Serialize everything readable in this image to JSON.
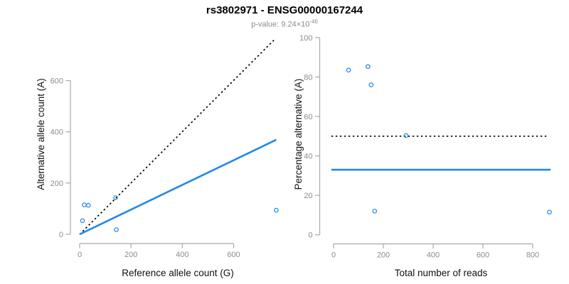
{
  "header": {
    "title": "rs3802971 - ENSG00000167244",
    "pvalue_prefix": "p-value: 9.24×10",
    "pvalue_exponent": "-46"
  },
  "colors": {
    "accent_blue": "#2287E8",
    "identity_black": "#000000",
    "axis_line": "#A9A9A9",
    "tick_label": "#8C8C8C",
    "axis_title": "#111111",
    "subtitle_gray": "#8C8C8C"
  },
  "chart_data": [
    {
      "id": "allele-count-scatter",
      "type": "scatter",
      "title": "",
      "xlabel": "Reference allele count (G)",
      "ylabel": "Alternative allele count (A)",
      "xlim": [
        0,
        600
      ],
      "ylim": [
        0,
        600
      ],
      "xticks": [
        0,
        200,
        400,
        600
      ],
      "yticks": [
        0,
        200,
        400,
        600
      ],
      "grid": false,
      "points": [
        [
          18,
          115
        ],
        [
          34,
          113
        ],
        [
          11,
          53
        ],
        [
          140,
          143
        ],
        [
          143,
          18
        ],
        [
          766,
          94
        ]
      ],
      "lines": [
        {
          "name": "identity-line",
          "style": "dotted",
          "color": "#000000",
          "from": [
            0,
            0
          ],
          "to": [
            760,
            761
          ]
        },
        {
          "name": "regression-line",
          "style": "solid",
          "color": "#2287E8",
          "from": [
            0,
            0
          ],
          "to": [
            766,
            369
          ]
        }
      ]
    },
    {
      "id": "percentage-alternative-scatter",
      "type": "scatter",
      "title": "",
      "xlabel": "Total number of reads",
      "ylabel": "Percentage alternative (A)",
      "xlim": [
        0,
        800
      ],
      "ylim": [
        0,
        100
      ],
      "xticks": [
        0,
        200,
        400,
        600,
        800
      ],
      "yticks": [
        0,
        20,
        40,
        60,
        80,
        100
      ],
      "grid": false,
      "points": [
        [
          60,
          83.5
        ],
        [
          138,
          85.3
        ],
        [
          151,
          76
        ],
        [
          291,
          50.3
        ],
        [
          165,
          12
        ],
        [
          867,
          11.5
        ]
      ],
      "lines": [
        {
          "name": "fifty-percent-line",
          "style": "dotted",
          "color": "#000000",
          "from": [
            -9,
            50
          ],
          "to": [
            855,
            50
          ]
        },
        {
          "name": "mean-percentage-line",
          "style": "solid",
          "color": "#2287E8",
          "from": [
            -9,
            33
          ],
          "to": [
            872,
            33
          ]
        }
      ]
    }
  ]
}
